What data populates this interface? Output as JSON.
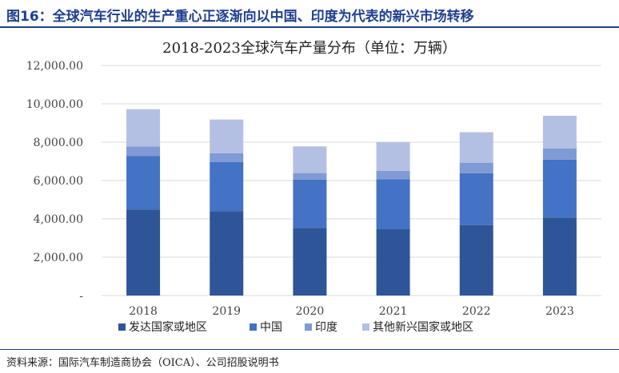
{
  "figure_title": "图16：全球汽车行业的生产重心正逐渐向以中国、印度为代表的新兴市场转移",
  "source_note": "资料来源：国际汽车制造商协会（OICA）、公司招股说明书",
  "chart_data": {
    "type": "bar",
    "stacked": true,
    "title": "2018-2023全球汽车产量分布（单位：万辆）",
    "categories": [
      "2018",
      "2019",
      "2020",
      "2021",
      "2022",
      "2023"
    ],
    "series": [
      {
        "name": "发达国家或地区",
        "color": "#2e5597",
        "values": [
          4490,
          4400,
          3530,
          3460,
          3680,
          4070
        ]
      },
      {
        "name": "中国",
        "color": "#4472c4",
        "values": [
          2780,
          2570,
          2520,
          2610,
          2700,
          3020
        ]
      },
      {
        "name": "印度",
        "color": "#7f9ad4",
        "values": [
          510,
          450,
          340,
          440,
          550,
          590
        ]
      },
      {
        "name": "其他新兴国家或地区",
        "color": "#b4c0e3",
        "values": [
          1940,
          1760,
          1390,
          1490,
          1590,
          1700
        ]
      }
    ],
    "ylim": [
      0,
      12000
    ],
    "yticks": [
      0,
      2000,
      4000,
      6000,
      8000,
      10000,
      12000
    ],
    "ytick_labels": [
      "-",
      "2,000.00",
      "4,000.00",
      "6,000.00",
      "8,000.00",
      "10,000.00",
      "12,000.00"
    ],
    "xlabel": "",
    "ylabel": "",
    "legend_position": "bottom",
    "grid": "horizontal"
  }
}
